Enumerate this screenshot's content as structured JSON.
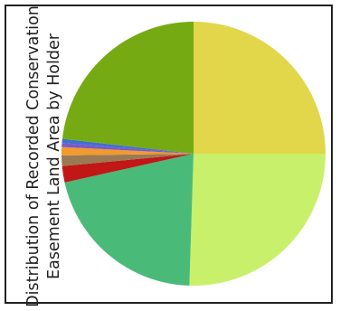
{
  "chart_data": {
    "type": "pie",
    "title": [
      "Distribution of Recorded Conservation",
      "Easement Land Area by Holder"
    ],
    "legend": "none",
    "slices": [
      {
        "value": 25.0,
        "color": "#e2d64b"
      },
      {
        "value": 25.5,
        "color": "#c8f06a"
      },
      {
        "value": 21.0,
        "color": "#4aba78"
      },
      {
        "value": 2.0,
        "color": "#c11717"
      },
      {
        "value": 1.3,
        "color": "#9a7a52"
      },
      {
        "value": 1.0,
        "color": "#f29a2e"
      },
      {
        "value": 0.5,
        "color": "#7a5ac8"
      },
      {
        "value": 0.5,
        "color": "#3f6fd0"
      },
      {
        "value": 23.2,
        "color": "#76aa12"
      }
    ]
  }
}
